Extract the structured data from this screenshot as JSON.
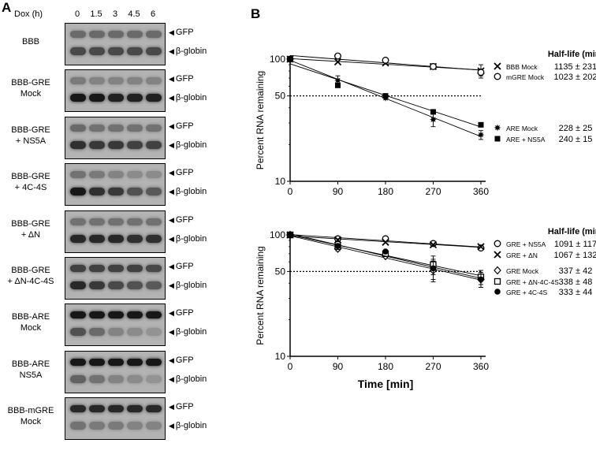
{
  "panel_a": {
    "letter": "A",
    "dox_label": "Dox (h)",
    "timepoints": [
      "0",
      "1.5",
      "3",
      "4.5",
      "6"
    ],
    "gfp_label": "GFP",
    "globin_label": "β-globin",
    "rows": [
      {
        "line1": "BBB",
        "line2": "",
        "gfp": [
          0.45,
          0.45,
          0.45,
          0.45,
          0.45
        ],
        "globin": [
          0.65,
          0.65,
          0.65,
          0.65,
          0.65
        ]
      },
      {
        "line1": "BBB-GRE",
        "line2": "Mock",
        "gfp": [
          0.35,
          0.3,
          0.3,
          0.3,
          0.3
        ],
        "globin": [
          0.95,
          0.95,
          0.9,
          0.9,
          0.9
        ]
      },
      {
        "line1": "BBB-GRE",
        "line2": "+ NS5A",
        "gfp": [
          0.45,
          0.4,
          0.4,
          0.4,
          0.4
        ],
        "globin": [
          0.8,
          0.75,
          0.75,
          0.7,
          0.7
        ]
      },
      {
        "line1": "BBB-GRE",
        "line2": "+ 4C-4S",
        "gfp": [
          0.4,
          0.35,
          0.3,
          0.25,
          0.25
        ],
        "globin": [
          0.95,
          0.8,
          0.75,
          0.6,
          0.55
        ]
      },
      {
        "line1": "BBB-GRE",
        "line2": "+ ΔN",
        "gfp": [
          0.4,
          0.4,
          0.4,
          0.4,
          0.4
        ],
        "globin": [
          0.85,
          0.85,
          0.85,
          0.8,
          0.8
        ]
      },
      {
        "line1": "BBB-GRE",
        "line2": "+ ΔN-4C-4S",
        "gfp": [
          0.7,
          0.7,
          0.7,
          0.7,
          0.65
        ],
        "globin": [
          0.85,
          0.75,
          0.65,
          0.6,
          0.55
        ]
      },
      {
        "line1": "BBB-ARE",
        "line2": "Mock",
        "gfp": [
          0.95,
          0.95,
          0.95,
          0.95,
          0.95
        ],
        "globin": [
          0.6,
          0.45,
          0.3,
          0.25,
          0.2
        ]
      },
      {
        "line1": "BBB-ARE",
        "line2": "NS5A",
        "gfp": [
          0.95,
          0.95,
          0.95,
          0.95,
          0.95
        ],
        "globin": [
          0.5,
          0.4,
          0.3,
          0.25,
          0.2
        ]
      },
      {
        "line1": "BBB-mGRE",
        "line2": "Mock",
        "gfp": [
          0.85,
          0.85,
          0.85,
          0.85,
          0.85
        ],
        "globin": [
          0.4,
          0.35,
          0.35,
          0.3,
          0.3
        ]
      }
    ]
  },
  "panel_b": {
    "letter": "B",
    "x_axis_title": "Time [min]"
  },
  "chart_data": [
    {
      "type": "line",
      "ylabel": "Percent RNA remaining",
      "xlabel": "",
      "yscale": "log",
      "ylim": [
        10,
        100
      ],
      "xlim": [
        0,
        360
      ],
      "x_ticks": [
        "0",
        "90",
        "180",
        "270",
        "360"
      ],
      "y_ticks": [
        "10",
        "50",
        "100"
      ],
      "reference_line": 50,
      "legend_header": "Half-life (min)",
      "x": [
        0,
        90,
        180,
        270,
        360
      ],
      "series": [
        {
          "name": "BBB Mock",
          "marker": "x",
          "half_life": "1135 ± 231",
          "values": [
            100,
            95,
            93,
            87,
            80
          ],
          "err": [
            0,
            0,
            0,
            0,
            10
          ]
        },
        {
          "name": "mGRE Mock",
          "marker": "circle-open",
          "half_life": "1023 ± 202",
          "values": [
            100,
            106,
            98,
            87,
            78
          ],
          "err": [
            0,
            0,
            0,
            3,
            5
          ]
        },
        {
          "name": "ARE Mock",
          "marker": "star",
          "half_life": "228 ± 25",
          "values": [
            100,
            67,
            48,
            32,
            24
          ],
          "err": [
            0,
            6,
            0,
            4,
            2
          ]
        },
        {
          "name": "ARE + NS5A",
          "marker": "square-filled",
          "half_life": "240 ± 15",
          "values": [
            100,
            61,
            50,
            37,
            29
          ],
          "err": [
            0,
            0,
            0,
            0,
            0
          ]
        }
      ]
    },
    {
      "type": "line",
      "ylabel": "Percent RNA remaining",
      "xlabel": "Time [min]",
      "yscale": "log",
      "ylim": [
        10,
        100
      ],
      "xlim": [
        0,
        360
      ],
      "x_ticks": [
        "0",
        "90",
        "180",
        "270",
        "360"
      ],
      "y_ticks": [
        "10",
        "50",
        "100"
      ],
      "reference_line": 50,
      "legend_header": "Half-life (min)",
      "x": [
        0,
        90,
        180,
        270,
        360
      ],
      "series": [
        {
          "name": "GRE + NS5A",
          "marker": "circle-open",
          "half_life": "1091 ± 117",
          "values": [
            100,
            93,
            93,
            85,
            78
          ],
          "err": [
            0,
            0,
            0,
            0,
            0
          ]
        },
        {
          "name": "GRE + ΔN",
          "marker": "x",
          "half_life": "1067 ± 132",
          "values": [
            100,
            91,
            87,
            83,
            80
          ],
          "err": [
            0,
            0,
            0,
            0,
            0
          ]
        },
        {
          "name": "GRE Mock",
          "marker": "diamond-open",
          "half_life": "337 ± 42",
          "values": [
            100,
            77,
            67,
            51,
            43
          ],
          "err": [
            0,
            3,
            0,
            10,
            6
          ]
        },
        {
          "name": "GRE + ΔN-4C-4S",
          "marker": "square-open",
          "half_life": "338 ± 48",
          "values": [
            100,
            80,
            70,
            57,
            45
          ],
          "err": [
            0,
            0,
            0,
            10,
            6
          ]
        },
        {
          "name": "GRE + 4C-4S",
          "marker": "circle-filled",
          "half_life": "333 ± 44",
          "values": [
            100,
            81,
            73,
            53,
            43
          ],
          "err": [
            0,
            0,
            0,
            10,
            6
          ]
        }
      ]
    }
  ]
}
